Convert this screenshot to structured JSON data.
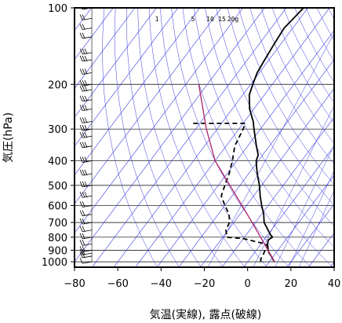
{
  "chart_data": {
    "type": "line",
    "subtype": "skew-T log-P sounding diagram",
    "title": "",
    "xlabel": "気温(実線), 露点(破線)",
    "ylabel": "気圧(hPa)",
    "xlim": [
      -80,
      40
    ],
    "ylim": [
      1050,
      100
    ],
    "y_scale": "log",
    "x_ticks": [
      -80,
      -60,
      -40,
      -20,
      0,
      20,
      40
    ],
    "y_ticks": [
      100,
      200,
      300,
      400,
      500,
      600,
      700,
      800,
      900,
      1000
    ],
    "x_tick_labels": [
      "−80",
      "−60",
      "−40",
      "−20",
      "0",
      "20",
      "40"
    ],
    "y_tick_labels": [
      "100",
      "200",
      "300",
      "400",
      "500",
      "600",
      "700",
      "800",
      "900",
      "1000"
    ],
    "mixing_ratio_labels": [
      "1",
      "5",
      "10",
      "15",
      "20g"
    ],
    "grid": true,
    "colors": {
      "temperature": "#000000",
      "dewpoint": "#000000",
      "parcel": "#b03070",
      "reference_lines": "#3a3ae0",
      "frame": "#000000"
    },
    "series": [
      {
        "key": "temperature",
        "style": "solid",
        "points": [
          {
            "p": 1000,
            "t": 12.5
          },
          {
            "p": 980,
            "t": 11
          },
          {
            "p": 950,
            "t": 9
          },
          {
            "p": 925,
            "t": 7
          },
          {
            "p": 900,
            "t": 5.5
          },
          {
            "p": 850,
            "t": 3
          },
          {
            "p": 820,
            "t": 2
          },
          {
            "p": 800,
            "t": 3
          },
          {
            "p": 780,
            "t": 1
          },
          {
            "p": 750,
            "t": -1.5
          },
          {
            "p": 700,
            "t": -6
          },
          {
            "p": 650,
            "t": -9
          },
          {
            "p": 600,
            "t": -13
          },
          {
            "p": 550,
            "t": -17
          },
          {
            "p": 500,
            "t": -21
          },
          {
            "p": 450,
            "t": -26
          },
          {
            "p": 420,
            "t": -29
          },
          {
            "p": 400,
            "t": -31
          },
          {
            "p": 380,
            "t": -32
          },
          {
            "p": 350,
            "t": -36
          },
          {
            "p": 300,
            "t": -43
          },
          {
            "p": 280,
            "t": -46
          },
          {
            "p": 250,
            "t": -52
          },
          {
            "p": 220,
            "t": -57
          },
          {
            "p": 200,
            "t": -59
          },
          {
            "p": 180,
            "t": -61
          },
          {
            "p": 160,
            "t": -62
          },
          {
            "p": 140,
            "t": -63
          },
          {
            "p": 120,
            "t": -64
          },
          {
            "p": 110,
            "t": -63
          },
          {
            "p": 100,
            "t": -62
          }
        ]
      },
      {
        "key": "dewpoint",
        "style": "dashed",
        "points": [
          {
            "p": 1000,
            "t": 6
          },
          {
            "p": 970,
            "t": 5
          },
          {
            "p": 950,
            "t": 5
          },
          {
            "p": 925,
            "t": 4.5
          },
          {
            "p": 900,
            "t": 4
          },
          {
            "p": 870,
            "t": 4
          },
          {
            "p": 850,
            "t": 2
          },
          {
            "p": 830,
            "t": -4
          },
          {
            "p": 810,
            "t": -10
          },
          {
            "p": 800,
            "t": -18
          },
          {
            "p": 750,
            "t": -21
          },
          {
            "p": 700,
            "t": -22
          },
          {
            "p": 650,
            "t": -25
          },
          {
            "p": 600,
            "t": -30
          },
          {
            "p": 550,
            "t": -35
          },
          {
            "p": 500,
            "t": -37
          },
          {
            "p": 450,
            "t": -39
          },
          {
            "p": 400,
            "t": -42
          },
          {
            "p": 350,
            "t": -46
          },
          {
            "p": 300,
            "t": -48
          },
          {
            "p": 285,
            "t": -49
          },
          {
            "p": 285,
            "t": -73
          }
        ]
      },
      {
        "key": "parcel",
        "style": "solid",
        "points": [
          {
            "p": 1000,
            "t": 12.5
          },
          {
            "p": 700,
            "t": -11.5
          },
          {
            "p": 400,
            "t": -50
          },
          {
            "p": 300,
            "t": -65
          },
          {
            "p": 200,
            "t": -84
          }
        ]
      }
    ],
    "wind_barbs": {
      "column_temperature": -72,
      "pressures": [
        1000,
        950,
        925,
        900,
        850,
        800,
        750,
        700,
        650,
        600,
        550,
        500,
        450,
        400,
        350,
        320,
        300,
        280,
        250,
        230,
        210,
        200,
        180,
        160,
        150,
        130,
        120,
        110,
        100
      ],
      "barb_counts": [
        1,
        2,
        2,
        2,
        2,
        2,
        2,
        2,
        2,
        2,
        3,
        3,
        3,
        3,
        3,
        3,
        3,
        3,
        3,
        3,
        3,
        3,
        3,
        3,
        3,
        2,
        2,
        2,
        2
      ]
    }
  }
}
